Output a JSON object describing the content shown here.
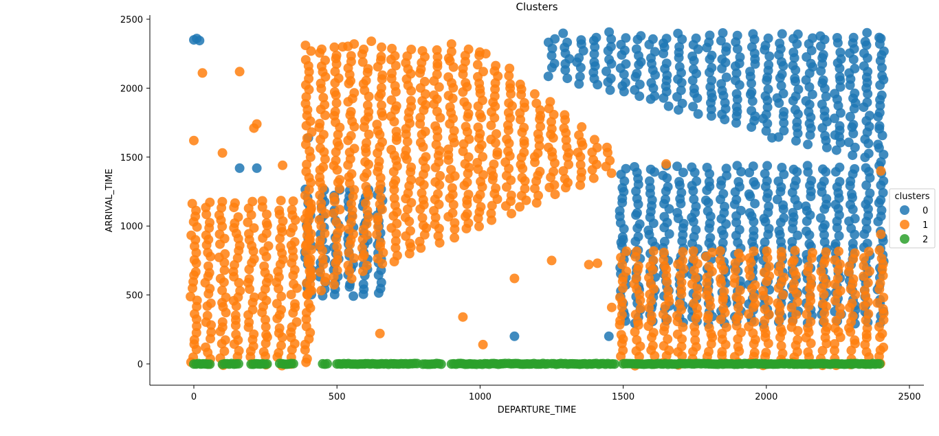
{
  "chart_data": {
    "type": "scatter",
    "title": "Clusters",
    "xlabel": "DEPARTURE_TIME",
    "ylabel": "ARRIVAL_TIME",
    "xlim": [
      -155,
      2545
    ],
    "ylim": [
      -150,
      2530
    ],
    "xticks": [
      0,
      500,
      1000,
      1500,
      2000,
      2500
    ],
    "yticks": [
      0,
      500,
      1000,
      1500,
      2000,
      2500
    ],
    "grid": false,
    "legend": {
      "title": "clusters",
      "placement": "right",
      "entries": [
        "0",
        "1",
        "2"
      ]
    },
    "series": [
      {
        "name": "0",
        "color": "#1f77b4",
        "description_regions": [
          {
            "x_range": [
              1250,
              2400
            ],
            "y_range": [
              1450,
              2400
            ]
          },
          {
            "x_range": [
              1500,
              2400
            ],
            "y_range": [
              300,
              1450
            ]
          },
          {
            "x_range": [
              400,
              650
            ],
            "y_range": [
              500,
              1300
            ]
          }
        ],
        "outliers": [
          [
            0,
            2350
          ],
          [
            10,
            2360
          ],
          [
            20,
            2345
          ],
          [
            400,
            1640
          ],
          [
            160,
            1420
          ],
          [
            220,
            1420
          ],
          [
            2400,
            2360
          ],
          [
            2240,
            1660
          ],
          [
            2020,
            1640
          ],
          [
            1120,
            200
          ],
          [
            1450,
            200
          ],
          [
            1500,
            900
          ]
        ]
      },
      {
        "name": "1",
        "color": "#ff7f0e",
        "description_regions": [
          {
            "x_range": [
              0,
              400
            ],
            "y_range": [
              0,
              1200
            ]
          },
          {
            "x_range": [
              400,
              1450
            ],
            "y_range": [
              500,
              2300
            ]
          },
          {
            "x_range": [
              1500,
              2400
            ],
            "y_range": [
              0,
              850
            ]
          }
        ],
        "outliers": [
          [
            30,
            2110
          ],
          [
            160,
            2120
          ],
          [
            0,
            1620
          ],
          [
            100,
            1530
          ],
          [
            210,
            1710
          ],
          [
            220,
            1740
          ],
          [
            310,
            1440
          ],
          [
            520,
            2300
          ],
          [
            560,
            2320
          ],
          [
            620,
            2340
          ],
          [
            900,
            2320
          ],
          [
            1020,
            2250
          ],
          [
            1650,
            1450
          ],
          [
            2400,
            1400
          ],
          [
            2400,
            940
          ],
          [
            650,
            220
          ],
          [
            940,
            340
          ],
          [
            1010,
            140
          ],
          [
            1120,
            620
          ],
          [
            1250,
            750
          ],
          [
            1410,
            730
          ],
          [
            1460,
            410
          ],
          [
            1380,
            720
          ]
        ]
      },
      {
        "name": "2",
        "color": "#2ca02c",
        "y_value": 0,
        "x_clusters": [
          [
            0,
            60
          ],
          [
            100,
            160
          ],
          [
            200,
            260
          ],
          [
            300,
            350
          ],
          [
            450,
            470
          ],
          [
            500,
            600
          ],
          [
            600,
            700
          ],
          [
            700,
            780
          ],
          [
            800,
            870
          ],
          [
            900,
            990
          ],
          [
            1000,
            1090
          ],
          [
            1100,
            1240
          ],
          [
            1250,
            1350
          ],
          [
            1350,
            1470
          ],
          [
            1500,
            1600
          ],
          [
            1600,
            1700
          ],
          [
            1700,
            1800
          ],
          [
            1800,
            1900
          ],
          [
            1900,
            2000
          ],
          [
            2000,
            2100
          ],
          [
            2100,
            2200
          ],
          [
            2200,
            2300
          ],
          [
            2300,
            2400
          ]
        ]
      }
    ]
  }
}
